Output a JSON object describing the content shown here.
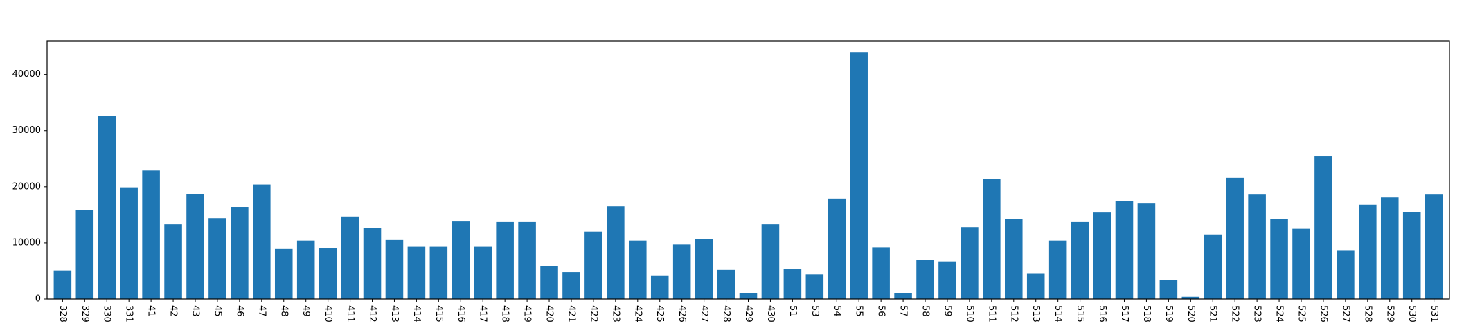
{
  "chart_data": {
    "type": "bar",
    "title": "",
    "xlabel": "",
    "ylabel": "",
    "ylim": [
      0,
      46000
    ],
    "yticks": [
      0,
      10000,
      20000,
      30000,
      40000
    ],
    "ytick_labels": [
      "0",
      "10000",
      "20000",
      "30000",
      "40000"
    ],
    "bar_color": "#1f77b4",
    "x_tick_rotation": "vertical",
    "grid": false,
    "categories": [
      "328",
      "329",
      "330",
      "331",
      "41",
      "42",
      "43",
      "45",
      "46",
      "47",
      "48",
      "49",
      "410",
      "411",
      "412",
      "413",
      "414",
      "415",
      "416",
      "417",
      "418",
      "419",
      "420",
      "421",
      "422",
      "423",
      "424",
      "425",
      "426",
      "427",
      "428",
      "429",
      "430",
      "51",
      "53",
      "54",
      "55",
      "56",
      "57",
      "58",
      "59",
      "510",
      "511",
      "512",
      "513",
      "514",
      "515",
      "516",
      "517",
      "518",
      "519",
      "520",
      "521",
      "522",
      "523",
      "524",
      "525",
      "526",
      "527",
      "528",
      "529",
      "530",
      "531"
    ],
    "values": [
      5100,
      15900,
      32600,
      19900,
      22900,
      13300,
      18700,
      14400,
      16400,
      20400,
      8900,
      10400,
      9000,
      14700,
      12600,
      10500,
      9300,
      9300,
      13800,
      9300,
      13700,
      13700,
      5800,
      4800,
      12000,
      16500,
      10400,
      4100,
      9700,
      10700,
      5200,
      1000,
      13300,
      5300,
      4400,
      17900,
      44000,
      9200,
      1100,
      7000,
      6700,
      12800,
      21400,
      14300,
      4500,
      10400,
      13700,
      15400,
      17500,
      17000,
      3400,
      400,
      11500,
      21600,
      18600,
      14300,
      12500,
      25400,
      8700,
      16800,
      18100,
      15500,
      18600
    ]
  }
}
